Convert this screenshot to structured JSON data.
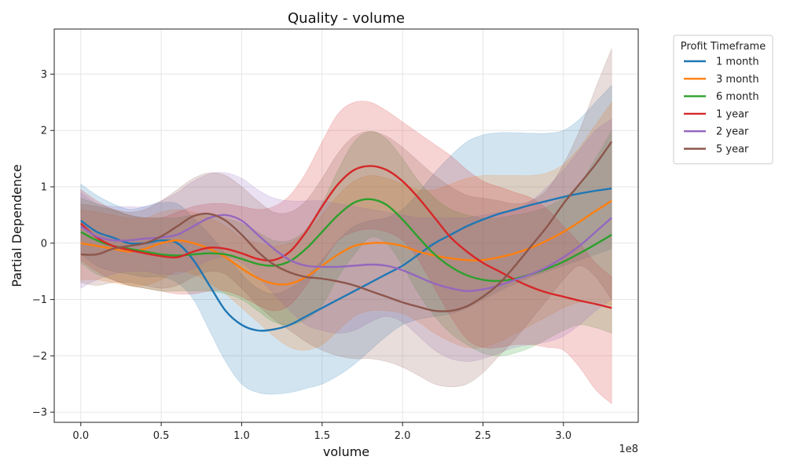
{
  "chart_data": {
    "type": "line",
    "title": "Quality - volume",
    "xlabel": "volume",
    "ylabel": "Partial Dependence",
    "x_scale_note": "1e8",
    "xlim": [
      -0.165,
      3.465
    ],
    "ylim": [
      -3.18,
      3.8
    ],
    "x_ticks": [
      0.0,
      0.5,
      1.0,
      1.5,
      2.0,
      2.5,
      3.0
    ],
    "x_tick_labels": [
      "0.0",
      "0.5",
      "1.0",
      "1.5",
      "2.0",
      "2.5",
      "3.0"
    ],
    "y_ticks": [
      -3,
      -2,
      -1,
      0,
      1,
      2,
      3
    ],
    "y_tick_labels": [
      "−3",
      "−2",
      "−1",
      "0",
      "1",
      "2",
      "3"
    ],
    "grid": true,
    "legend": {
      "title": "Profit Timeframe",
      "placement": "outside-top-right"
    },
    "x": [
      0.0,
      0.1,
      0.2,
      0.3,
      0.4,
      0.5,
      0.6,
      0.7,
      0.8,
      0.9,
      1.0,
      1.1,
      1.2,
      1.3,
      1.4,
      1.5,
      1.6,
      1.7,
      1.8,
      1.9,
      2.0,
      2.1,
      2.2,
      2.3,
      2.4,
      2.5,
      2.6,
      2.7,
      2.8,
      2.9,
      3.0,
      3.1,
      3.2,
      3.3
    ],
    "series": [
      {
        "name": "1 month",
        "color": "#1f77b4",
        "values": [
          0.4,
          0.2,
          0.1,
          0.0,
          0.0,
          0.05,
          0.0,
          -0.3,
          -0.75,
          -1.2,
          -1.45,
          -1.55,
          -1.53,
          -1.45,
          -1.3,
          -1.15,
          -1.0,
          -0.85,
          -0.7,
          -0.55,
          -0.4,
          -0.2,
          0.0,
          0.15,
          0.3,
          0.42,
          0.52,
          0.6,
          0.68,
          0.75,
          0.82,
          0.88,
          0.93,
          0.97
        ],
        "upper": [
          1.05,
          0.85,
          0.7,
          0.6,
          0.65,
          0.72,
          0.7,
          0.45,
          0.15,
          -0.2,
          -0.55,
          -0.8,
          -0.9,
          -0.8,
          -0.6,
          -0.3,
          0.05,
          0.3,
          0.4,
          0.45,
          0.6,
          0.9,
          1.25,
          1.55,
          1.8,
          1.92,
          1.96,
          1.96,
          1.95,
          1.95,
          2.0,
          2.2,
          2.5,
          2.8
        ],
        "lower": [
          -0.2,
          -0.4,
          -0.5,
          -0.55,
          -0.6,
          -0.6,
          -0.7,
          -1.0,
          -1.55,
          -2.1,
          -2.5,
          -2.65,
          -2.68,
          -2.65,
          -2.58,
          -2.5,
          -2.35,
          -2.15,
          -1.9,
          -1.65,
          -1.45,
          -1.35,
          -1.3,
          -1.25,
          -1.15,
          -1.0,
          -0.85,
          -0.72,
          -0.6,
          -0.5,
          -0.4,
          -0.3,
          -0.2,
          -0.1
        ]
      },
      {
        "name": "3 month",
        "color": "#ff7f0e",
        "values": [
          0.0,
          -0.05,
          -0.1,
          -0.15,
          -0.1,
          0.0,
          0.05,
          0.0,
          -0.1,
          -0.25,
          -0.45,
          -0.62,
          -0.72,
          -0.72,
          -0.6,
          -0.4,
          -0.2,
          -0.05,
          0.0,
          0.0,
          -0.05,
          -0.15,
          -0.22,
          -0.27,
          -0.3,
          -0.3,
          -0.25,
          -0.18,
          -0.08,
          0.05,
          0.2,
          0.38,
          0.57,
          0.75
        ],
        "upper": [
          0.6,
          0.55,
          0.5,
          0.45,
          0.45,
          0.55,
          0.6,
          0.55,
          0.45,
          0.3,
          0.1,
          0.0,
          -0.05,
          0.0,
          0.2,
          0.5,
          0.85,
          1.1,
          1.2,
          1.15,
          1.05,
          0.95,
          0.95,
          1.05,
          1.15,
          1.2,
          1.2,
          1.2,
          1.2,
          1.25,
          1.4,
          1.7,
          2.1,
          2.5
        ],
        "lower": [
          -0.65,
          -0.65,
          -0.7,
          -0.75,
          -0.75,
          -0.65,
          -0.5,
          -0.55,
          -0.7,
          -0.9,
          -1.15,
          -1.4,
          -1.65,
          -1.85,
          -1.9,
          -1.8,
          -1.55,
          -1.3,
          -1.2,
          -1.2,
          -1.25,
          -1.4,
          -1.6,
          -1.75,
          -1.85,
          -1.85,
          -1.75,
          -1.6,
          -1.45,
          -1.3,
          -1.15,
          -1.05,
          -1.05,
          -1.1
        ]
      },
      {
        "name": "6 month",
        "color": "#2ca02c",
        "values": [
          0.2,
          0.05,
          -0.05,
          -0.1,
          -0.15,
          -0.2,
          -0.22,
          -0.2,
          -0.18,
          -0.2,
          -0.28,
          -0.37,
          -0.4,
          -0.32,
          -0.1,
          0.2,
          0.5,
          0.72,
          0.78,
          0.68,
          0.42,
          0.1,
          -0.2,
          -0.42,
          -0.57,
          -0.65,
          -0.67,
          -0.63,
          -0.55,
          -0.45,
          -0.33,
          -0.18,
          -0.02,
          0.15
        ],
        "upper": [
          0.8,
          0.7,
          0.6,
          0.5,
          0.45,
          0.45,
          0.45,
          0.5,
          0.5,
          0.45,
          0.35,
          0.2,
          0.05,
          0.05,
          0.25,
          0.7,
          1.3,
          1.8,
          1.98,
          1.85,
          1.5,
          1.1,
          0.8,
          0.6,
          0.5,
          0.45,
          0.45,
          0.5,
          0.55,
          0.65,
          0.8,
          1.05,
          1.5,
          2.0
        ],
        "lower": [
          -0.35,
          -0.55,
          -0.65,
          -0.75,
          -0.8,
          -0.85,
          -0.85,
          -0.85,
          -0.85,
          -0.9,
          -1.0,
          -1.2,
          -1.4,
          -1.45,
          -1.35,
          -1.1,
          -0.6,
          -0.2,
          0.1,
          0.0,
          -0.4,
          -0.9,
          -1.3,
          -1.6,
          -1.8,
          -1.95,
          -2.0,
          -1.95,
          -1.85,
          -1.7,
          -1.55,
          -1.45,
          -1.5,
          -1.6
        ]
      },
      {
        "name": "1 year",
        "color": "#d62728",
        "values": [
          0.35,
          0.1,
          -0.05,
          -0.12,
          -0.18,
          -0.23,
          -0.25,
          -0.15,
          -0.08,
          -0.1,
          -0.18,
          -0.28,
          -0.3,
          -0.15,
          0.2,
          0.65,
          1.05,
          1.3,
          1.37,
          1.3,
          1.1,
          0.8,
          0.45,
          0.1,
          -0.15,
          -0.35,
          -0.5,
          -0.65,
          -0.78,
          -0.88,
          -0.95,
          -1.02,
          -1.08,
          -1.15
        ],
        "upper": [
          0.95,
          0.75,
          0.6,
          0.5,
          0.45,
          0.45,
          0.55,
          0.65,
          0.7,
          0.7,
          0.65,
          0.6,
          0.65,
          0.85,
          1.25,
          1.8,
          2.3,
          2.5,
          2.5,
          2.35,
          2.15,
          1.95,
          1.75,
          1.55,
          1.3,
          1.1,
          1.0,
          0.9,
          0.8,
          0.6,
          0.3,
          0.0,
          -0.35,
          -0.6
        ],
        "lower": [
          -0.3,
          -0.5,
          -0.65,
          -0.75,
          -0.8,
          -0.85,
          -0.9,
          -0.9,
          -0.85,
          -0.85,
          -0.95,
          -1.1,
          -1.2,
          -1.1,
          -0.75,
          -0.35,
          0.05,
          0.2,
          0.25,
          0.2,
          0.05,
          -0.3,
          -0.8,
          -1.3,
          -1.7,
          -1.85,
          -1.85,
          -1.8,
          -1.8,
          -1.85,
          -1.9,
          -2.2,
          -2.6,
          -2.85
        ]
      },
      {
        "name": "2 year",
        "color": "#9467bd",
        "values": [
          0.3,
          0.12,
          0.05,
          0.05,
          0.08,
          0.1,
          0.15,
          0.3,
          0.45,
          0.5,
          0.4,
          0.15,
          -0.1,
          -0.3,
          -0.4,
          -0.42,
          -0.42,
          -0.4,
          -0.38,
          -0.4,
          -0.48,
          -0.6,
          -0.72,
          -0.8,
          -0.85,
          -0.82,
          -0.75,
          -0.65,
          -0.55,
          -0.42,
          -0.25,
          -0.05,
          0.2,
          0.45
        ],
        "upper": [
          0.9,
          0.7,
          0.65,
          0.65,
          0.65,
          0.75,
          0.9,
          1.1,
          1.23,
          1.25,
          1.15,
          0.95,
          0.8,
          0.75,
          0.75,
          0.75,
          0.7,
          0.65,
          0.6,
          0.55,
          0.5,
          0.45,
          0.45,
          0.45,
          0.45,
          0.5,
          0.55,
          0.6,
          0.75,
          1.0,
          1.3,
          1.65,
          2.0,
          2.2
        ],
        "lower": [
          -0.8,
          -0.65,
          -0.55,
          -0.5,
          -0.5,
          -0.55,
          -0.55,
          -0.45,
          -0.3,
          -0.25,
          -0.35,
          -0.6,
          -0.9,
          -1.2,
          -1.45,
          -1.55,
          -1.6,
          -1.55,
          -1.4,
          -1.3,
          -1.4,
          -1.65,
          -1.9,
          -2.05,
          -2.1,
          -2.05,
          -1.95,
          -1.85,
          -1.8,
          -1.75,
          -1.65,
          -1.45,
          -1.2,
          -1.0
        ]
      },
      {
        "name": "5 year",
        "color": "#8c564b",
        "values": [
          -0.2,
          -0.2,
          -0.1,
          -0.05,
          0.0,
          0.12,
          0.3,
          0.48,
          0.52,
          0.4,
          0.15,
          -0.15,
          -0.38,
          -0.52,
          -0.6,
          -0.63,
          -0.68,
          -0.75,
          -0.85,
          -0.95,
          -1.05,
          -1.13,
          -1.2,
          -1.2,
          -1.12,
          -0.95,
          -0.72,
          -0.4,
          -0.05,
          0.3,
          0.7,
          1.05,
          1.4,
          1.8
        ],
        "upper": [
          0.7,
          0.65,
          0.6,
          0.55,
          0.6,
          0.75,
          0.95,
          1.15,
          1.25,
          1.2,
          1.0,
          0.75,
          0.55,
          0.55,
          0.75,
          1.15,
          1.6,
          1.9,
          1.98,
          1.9,
          1.7,
          1.45,
          1.2,
          1.0,
          0.85,
          0.8,
          0.75,
          0.7,
          0.75,
          0.95,
          1.4,
          2.0,
          2.75,
          3.45
        ],
        "lower": [
          -0.7,
          -0.75,
          -0.7,
          -0.7,
          -0.75,
          -0.8,
          -0.75,
          -0.6,
          -0.5,
          -0.55,
          -0.8,
          -1.1,
          -1.35,
          -1.55,
          -1.75,
          -1.9,
          -2.0,
          -2.05,
          -2.05,
          -2.1,
          -2.2,
          -2.35,
          -2.5,
          -2.55,
          -2.5,
          -2.3,
          -2.0,
          -1.7,
          -1.35,
          -1.0,
          -0.65,
          -0.4,
          -0.6,
          -1.0
        ]
      }
    ]
  }
}
